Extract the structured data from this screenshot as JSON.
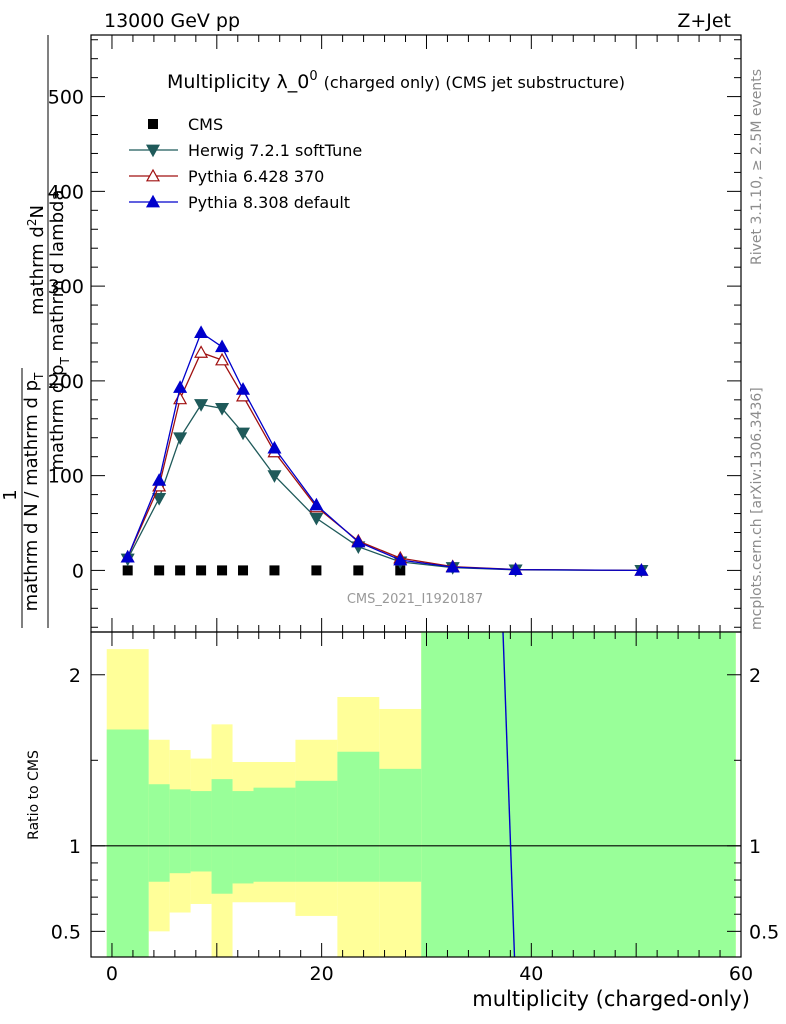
{
  "header": {
    "left": "13000 GeV pp",
    "right": "Z+Jet"
  },
  "side_labels": {
    "upper": "Rivet 3.1.10, ≥ 2.5M events",
    "lower": "mcplots.cern.ch [arXiv:1306.3436]"
  },
  "chart_data": [
    {
      "type": "line",
      "title_main": "Multiplicity λ_0",
      "title_sup": "0",
      "title_tail": "(charged only) (CMS jet substructure)",
      "watermark": "CMS_2021_I1920187",
      "ylabel": {
        "numerator": "mathrm d",
        "numerator_sup": "2",
        "numerator_end": "N",
        "denominator": "mathrm d p",
        "denominator_sub": "T",
        "denominator_end": " mathrm d lambda",
        "prefix_one": "1",
        "prefix_den": "mathrm d N / mathrm d p",
        "prefix_den_sub": "T"
      },
      "xlim": [
        -2,
        60
      ],
      "ylim": [
        -65,
        565
      ],
      "yticks": [
        0,
        100,
        200,
        300,
        400,
        500
      ],
      "legend_position": "top-left",
      "series": [
        {
          "name": "CMS",
          "marker": "square",
          "color": "#000000",
          "x": [
            1.5,
            4.5,
            6.5,
            8.5,
            10.5,
            12.5,
            15.5,
            19.5,
            23.5,
            27.5
          ],
          "y": [
            0,
            0,
            0,
            0,
            0,
            0,
            0,
            0,
            0,
            0
          ]
        },
        {
          "name": "Herwig 7.2.1 softTune",
          "marker": "triangle-down",
          "color": "#1f5a5a",
          "x": [
            1.5,
            4.5,
            6.5,
            8.5,
            10.5,
            12.5,
            15.5,
            19.5,
            23.5,
            27.5,
            32.5,
            38.5,
            50.5
          ],
          "y": [
            12,
            76,
            140,
            175,
            171,
            145,
            100,
            55,
            25,
            9,
            3,
            0.5,
            0
          ]
        },
        {
          "name": "Pythia 6.428 370",
          "marker": "triangle-up-open",
          "color": "#a01010",
          "x": [
            1.5,
            4.5,
            6.5,
            8.5,
            10.5,
            12.5,
            15.5,
            19.5,
            23.5,
            27.5,
            32.5,
            38.5,
            50.5
          ],
          "y": [
            14,
            89,
            181,
            230,
            222,
            184,
            125,
            67,
            31,
            13,
            4,
            1,
            0
          ]
        },
        {
          "name": "Pythia 8.308 default",
          "marker": "triangle-up",
          "color": "#0000cc",
          "x": [
            1.5,
            4.5,
            6.5,
            8.5,
            10.5,
            12.5,
            15.5,
            19.5,
            23.5,
            27.5,
            32.5,
            38.5,
            50.5
          ],
          "y": [
            14,
            95,
            193,
            251,
            236,
            191,
            129,
            69,
            30,
            11,
            3.5,
            0.8,
            0
          ]
        }
      ]
    },
    {
      "type": "area",
      "ylabel": "Ratio to CMS",
      "xlabel": "multiplicity (charged-only)",
      "xlim": [
        -2,
        60
      ],
      "ylim": [
        0.35,
        2.25
      ],
      "xticks": [
        0,
        20,
        40,
        60
      ],
      "yticks": [
        0.5,
        1,
        2
      ],
      "bins": {
        "edges": [
          -0.5,
          3.5,
          5.5,
          7.5,
          9.5,
          11.5,
          13.5,
          17.5,
          21.5,
          25.5,
          29.5,
          59.5
        ],
        "green_hi": [
          1.68,
          1.36,
          1.33,
          1.32,
          1.39,
          1.32,
          1.34,
          1.38,
          1.55,
          1.45,
          2.25
        ],
        "green_lo": [
          0.35,
          0.79,
          0.84,
          0.85,
          0.72,
          0.78,
          0.79,
          0.79,
          0.79,
          0.79,
          0.35
        ],
        "yellow_hi": [
          2.15,
          1.62,
          1.56,
          1.51,
          1.71,
          1.49,
          1.49,
          1.62,
          1.87,
          1.8,
          2.25
        ],
        "yellow_lo": [
          0.35,
          0.5,
          0.61,
          0.66,
          0.35,
          0.67,
          0.67,
          0.59,
          0.35,
          0.35,
          0.35
        ]
      },
      "reference_line": 1,
      "series": [
        {
          "name": "Pythia 8.308 default",
          "color": "#0000cc",
          "x": [
            37.3,
            38.4
          ],
          "y": [
            2.25,
            0.35
          ]
        }
      ]
    }
  ]
}
